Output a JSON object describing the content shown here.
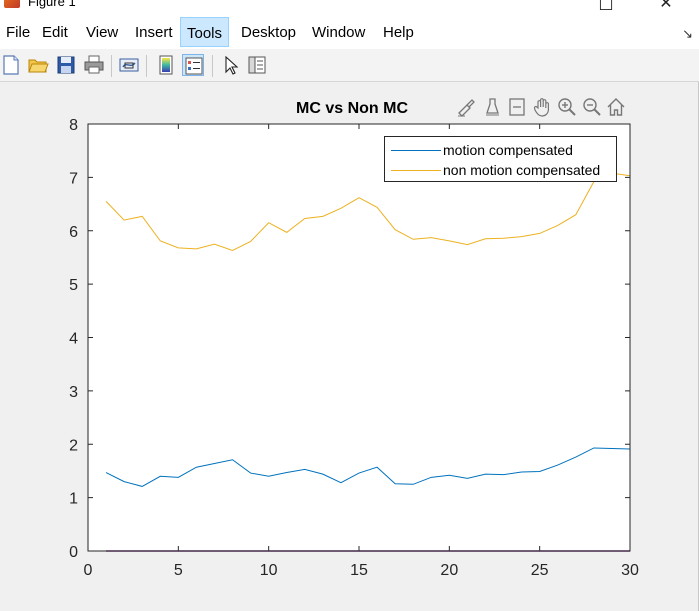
{
  "window": {
    "title": "Figure 1"
  },
  "menu": {
    "items": [
      "File",
      "Edit",
      "View",
      "Insert",
      "Tools",
      "Desktop",
      "Window",
      "Help"
    ],
    "active": "Tools",
    "extra": "↘"
  },
  "toolbar": {
    "icons": [
      "new-figure-icon",
      "open-file-icon",
      "save-icon",
      "print-icon",
      "link-plot-icon",
      "insert-colorbar-icon",
      "insert-legend-icon",
      "edit-plot-icon",
      "property-inspector-icon"
    ],
    "active": "insert-legend-icon"
  },
  "axes_toolbar": {
    "icons": [
      "brush-data-icon",
      "data-tips-icon",
      "restore-view-icon",
      "pan-icon",
      "zoom-in-icon",
      "zoom-out-icon",
      "home-icon"
    ]
  },
  "colors": {
    "series1": "#0072bd",
    "series2": "#edb120",
    "baseline": "#7e2f8e"
  },
  "chart_data": {
    "type": "line",
    "title": "MC vs Non MC",
    "xlabel": "",
    "ylabel": "",
    "xlim": [
      0,
      30
    ],
    "ylim": [
      0,
      8
    ],
    "xticks": [
      0,
      5,
      10,
      15,
      20,
      25,
      30
    ],
    "yticks": [
      0,
      1,
      2,
      3,
      4,
      5,
      6,
      7,
      8
    ],
    "grid": false,
    "legend_position": "top-right",
    "x": [
      1,
      2,
      3,
      4,
      5,
      6,
      7,
      8,
      9,
      10,
      11,
      12,
      13,
      14,
      15,
      16,
      17,
      18,
      19,
      20,
      21,
      22,
      23,
      24,
      25,
      26,
      27,
      28,
      29,
      30
    ],
    "series": [
      {
        "name": "motion compensated",
        "values": [
          1.47,
          1.3,
          1.21,
          1.4,
          1.38,
          1.57,
          1.64,
          1.71,
          1.46,
          1.4,
          1.47,
          1.53,
          1.44,
          1.28,
          1.46,
          1.57,
          1.26,
          1.25,
          1.38,
          1.42,
          1.36,
          1.44,
          1.43,
          1.48,
          1.49,
          1.61,
          1.76,
          1.93,
          1.92,
          1.91
        ]
      },
      {
        "name": "non motion compensated",
        "values": [
          6.55,
          6.2,
          6.27,
          5.81,
          5.68,
          5.66,
          5.75,
          5.63,
          5.8,
          6.15,
          5.97,
          6.23,
          6.27,
          6.42,
          6.62,
          6.44,
          6.02,
          5.84,
          5.87,
          5.81,
          5.74,
          5.85,
          5.86,
          5.89,
          5.95,
          6.1,
          6.3,
          6.92,
          7.08,
          7.03
        ]
      }
    ],
    "baseline_value": 0
  }
}
